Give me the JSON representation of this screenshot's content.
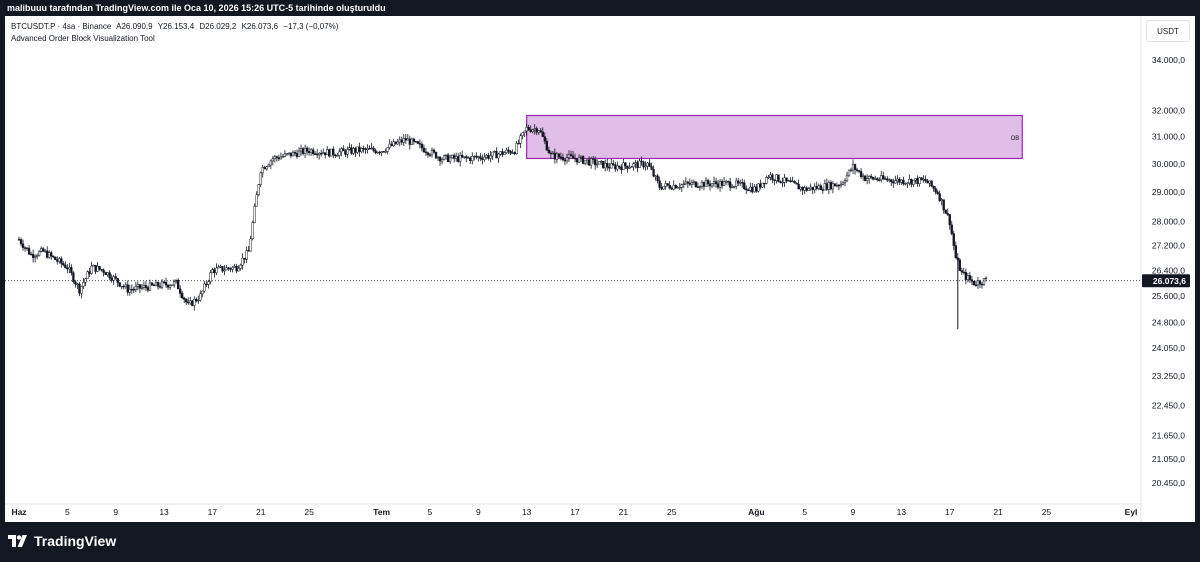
{
  "header": {
    "attribution": "malibuuu tarafından TradingView.com ile Oca 10, 2026 15:26 UTC-5 tarihinde oluşturuldu"
  },
  "legend": {
    "symbol": "BTCUSDT.P · 4sa · Binance",
    "open": "A26.090,9",
    "high": "Y26.153,4",
    "low": "D26.029,2",
    "close": "K26.073,6",
    "change": "−17,3 (−0,07%)",
    "indicator": "Advanced Order Block Visualization Tool"
  },
  "currency": "USDT",
  "footer": {
    "brand": "TradingView"
  },
  "colors": {
    "candle": "#131722",
    "ob_fill": "#e1bee7",
    "ob_border": "#9c27b0",
    "background": "#ffffff",
    "frame": "#131722",
    "price_badge": "#131722"
  },
  "chart_data": {
    "type": "candlestick",
    "symbol": "BTCUSDT.P",
    "timeframe": "4sa",
    "exchange": "Binance",
    "price_scale": "log",
    "y_ticks": [
      {
        "value": 34000,
        "label": "34.000,0"
      },
      {
        "value": 32000,
        "label": "32.000,0"
      },
      {
        "value": 31000,
        "label": "31.000,0"
      },
      {
        "value": 30000,
        "label": "30.000,0"
      },
      {
        "value": 29000,
        "label": "29.000,0"
      },
      {
        "value": 28000,
        "label": "28.000,0"
      },
      {
        "value": 27200,
        "label": "27.200,0"
      },
      {
        "value": 26400,
        "label": "26.400,0"
      },
      {
        "value": 25600,
        "label": "25.600,0"
      },
      {
        "value": 24800,
        "label": "24.800,0"
      },
      {
        "value": 24050,
        "label": "24.050,0"
      },
      {
        "value": 23250,
        "label": "23.250,0"
      },
      {
        "value": 22450,
        "label": "22.450,0"
      },
      {
        "value": 21650,
        "label": "21.650,0"
      },
      {
        "value": 21050,
        "label": "21.050,0"
      },
      {
        "value": 20450,
        "label": "20.450,0"
      }
    ],
    "x_ticks": [
      {
        "date": "2023-06-01",
        "label": "Haz",
        "bold": true
      },
      {
        "date": "2023-06-05",
        "label": "5"
      },
      {
        "date": "2023-06-09",
        "label": "9"
      },
      {
        "date": "2023-06-13",
        "label": "13"
      },
      {
        "date": "2023-06-17",
        "label": "17"
      },
      {
        "date": "2023-06-21",
        "label": "21"
      },
      {
        "date": "2023-06-25",
        "label": "25"
      },
      {
        "date": "2023-07-01",
        "label": "Tem",
        "bold": true
      },
      {
        "date": "2023-07-05",
        "label": "5"
      },
      {
        "date": "2023-07-09",
        "label": "9"
      },
      {
        "date": "2023-07-13",
        "label": "13"
      },
      {
        "date": "2023-07-17",
        "label": "17"
      },
      {
        "date": "2023-07-21",
        "label": "21"
      },
      {
        "date": "2023-07-25",
        "label": "25"
      },
      {
        "date": "2023-08-01",
        "label": "Ağu",
        "bold": true
      },
      {
        "date": "2023-08-05",
        "label": "5"
      },
      {
        "date": "2023-08-09",
        "label": "9"
      },
      {
        "date": "2023-08-13",
        "label": "13"
      },
      {
        "date": "2023-08-17",
        "label": "17"
      },
      {
        "date": "2023-08-21",
        "label": "21"
      },
      {
        "date": "2023-08-25",
        "label": "25"
      },
      {
        "date": "2023-09-01",
        "label": "Eyl",
        "bold": true
      }
    ],
    "price_trend": [
      {
        "date": "2023-06-01",
        "price": 27400
      },
      {
        "date": "2023-06-02",
        "price": 26900
      },
      {
        "date": "2023-06-03",
        "price": 27000
      },
      {
        "date": "2023-06-05",
        "price": 26500
      },
      {
        "date": "2023-06-06",
        "price": 25800
      },
      {
        "date": "2023-06-07",
        "price": 26500
      },
      {
        "date": "2023-06-08",
        "price": 26400
      },
      {
        "date": "2023-06-10",
        "price": 25800
      },
      {
        "date": "2023-06-12",
        "price": 25900
      },
      {
        "date": "2023-06-14",
        "price": 26000
      },
      {
        "date": "2023-06-15",
        "price": 25300
      },
      {
        "date": "2023-06-16",
        "price": 25600
      },
      {
        "date": "2023-06-17",
        "price": 26400
      },
      {
        "date": "2023-06-19",
        "price": 26500
      },
      {
        "date": "2023-06-20",
        "price": 27000
      },
      {
        "date": "2023-06-20T12",
        "price": 28400
      },
      {
        "date": "2023-06-21",
        "price": 29800
      },
      {
        "date": "2023-06-22",
        "price": 30200
      },
      {
        "date": "2023-06-23",
        "price": 30300
      },
      {
        "date": "2023-06-25",
        "price": 30500
      },
      {
        "date": "2023-06-27",
        "price": 30400
      },
      {
        "date": "2023-06-29",
        "price": 30500
      },
      {
        "date": "2023-07-01",
        "price": 30500
      },
      {
        "date": "2023-07-03",
        "price": 30900
      },
      {
        "date": "2023-07-06",
        "price": 30200
      },
      {
        "date": "2023-07-08",
        "price": 30200
      },
      {
        "date": "2023-07-10",
        "price": 30300
      },
      {
        "date": "2023-07-12",
        "price": 30500
      },
      {
        "date": "2023-07-13",
        "price": 31300
      },
      {
        "date": "2023-07-14",
        "price": 31300
      },
      {
        "date": "2023-07-15",
        "price": 30300
      },
      {
        "date": "2023-07-17",
        "price": 30200
      },
      {
        "date": "2023-07-20",
        "price": 29900
      },
      {
        "date": "2023-07-23",
        "price": 30000
      },
      {
        "date": "2023-07-24",
        "price": 29200
      },
      {
        "date": "2023-07-27",
        "price": 29300
      },
      {
        "date": "2023-07-30",
        "price": 29300
      },
      {
        "date": "2023-08-01",
        "price": 29100
      },
      {
        "date": "2023-08-02",
        "price": 29600
      },
      {
        "date": "2023-08-05",
        "price": 29100
      },
      {
        "date": "2023-08-08",
        "price": 29300
      },
      {
        "date": "2023-08-09",
        "price": 29900
      },
      {
        "date": "2023-08-10",
        "price": 29500
      },
      {
        "date": "2023-08-13",
        "price": 29400
      },
      {
        "date": "2023-08-15",
        "price": 29400
      },
      {
        "date": "2023-08-16",
        "price": 29000
      },
      {
        "date": "2023-08-17",
        "price": 28000
      },
      {
        "date": "2023-08-17T12",
        "price": 26800
      },
      {
        "date": "2023-08-18",
        "price": 26300
      },
      {
        "date": "2023-08-19",
        "price": 26000
      },
      {
        "date": "2023-08-20",
        "price": 26100
      }
    ],
    "spikes": [
      {
        "date": "2023-08-17T16",
        "low": 24600,
        "high": 26800
      }
    ],
    "order_block": {
      "label": "OB",
      "start_date": "2023-07-13",
      "end_date": "2023-08-23",
      "top": 31800,
      "bottom": 30200
    },
    "last_price": {
      "value": 26073.6,
      "label": "26.073,6"
    }
  }
}
